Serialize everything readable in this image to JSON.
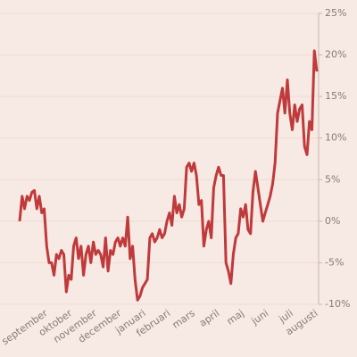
{
  "chart_data": {
    "type": "line",
    "categories": [
      null,
      null,
      null,
      null,
      null,
      null,
      null,
      null,
      null,
      null,
      null,
      "september",
      null,
      null,
      null,
      null,
      null,
      null,
      null,
      null,
      null,
      "oktober",
      null,
      null,
      null,
      null,
      null,
      null,
      null,
      null,
      null,
      "november",
      null,
      null,
      null,
      null,
      null,
      null,
      null,
      null,
      null,
      "december",
      null,
      null,
      null,
      null,
      null,
      null,
      null,
      null,
      null,
      "januari",
      null,
      null,
      null,
      null,
      null,
      null,
      null,
      null,
      null,
      "februari",
      null,
      null,
      null,
      null,
      null,
      null,
      null,
      null,
      null,
      "mars",
      null,
      null,
      null,
      null,
      null,
      null,
      null,
      null,
      null,
      "april",
      null,
      null,
      null,
      null,
      null,
      null,
      null,
      null,
      null,
      "maj",
      null,
      null,
      null,
      null,
      null,
      null,
      null,
      null,
      null,
      "juni",
      null,
      null,
      null,
      null,
      null,
      null,
      null,
      null,
      null,
      "juli",
      null,
      null,
      null,
      null,
      null,
      null,
      null,
      null,
      null,
      "augusti"
    ],
    "series": [
      {
        "color": "#c0393b",
        "values": [
          0,
          3,
          1.5,
          3,
          2.5,
          3.5,
          3.7,
          1.5,
          3,
          1,
          1.5,
          -3,
          -5,
          -5,
          -6.5,
          -4,
          -4.5,
          -3.5,
          -4,
          -8.5,
          -6.5,
          -7,
          -3,
          -2,
          -4.5,
          -3,
          -6.5,
          -4,
          -3,
          -5,
          -2.5,
          -4,
          -3.5,
          -4,
          -5.5,
          -2,
          -6,
          -3.5,
          -4,
          -2.5,
          -2,
          -3,
          -2,
          -3,
          0.5,
          -4.5,
          -3,
          -7,
          -9.5,
          -9,
          -8,
          -7.5,
          -7,
          -2,
          -1.5,
          -2.5,
          -2,
          -1,
          -2,
          -1.5,
          0,
          1,
          -0.5,
          3,
          1,
          2,
          0.5,
          1.5,
          6.5,
          7,
          6,
          7,
          5.5,
          2,
          2.5,
          -3,
          -1,
          0,
          -2,
          4,
          5.5,
          6.5,
          5.5,
          5.5,
          -5,
          -6,
          -7.5,
          -4,
          -2,
          -1.5,
          1.5,
          0.5,
          2,
          -1,
          -1.5,
          3.5,
          6,
          4,
          2,
          0,
          1,
          2,
          3,
          4.5,
          7,
          13,
          14.5,
          16,
          13,
          17,
          13,
          11,
          14,
          12,
          13.5,
          14,
          9,
          8,
          12,
          11,
          20.5,
          18
        ]
      }
    ],
    "ylim": [
      -10,
      25
    ],
    "yticks": [
      {
        "value": 25,
        "label": "25%"
      },
      {
        "value": 20,
        "label": "20%"
      },
      {
        "value": 15,
        "label": "15%"
      },
      {
        "value": 10,
        "label": "10%"
      },
      {
        "value": 5,
        "label": "5%"
      },
      {
        "value": 0,
        "label": "0%"
      },
      {
        "value": -5,
        "label": "-5%"
      },
      {
        "value": -10,
        "label": "-10%"
      }
    ],
    "grid": true
  }
}
